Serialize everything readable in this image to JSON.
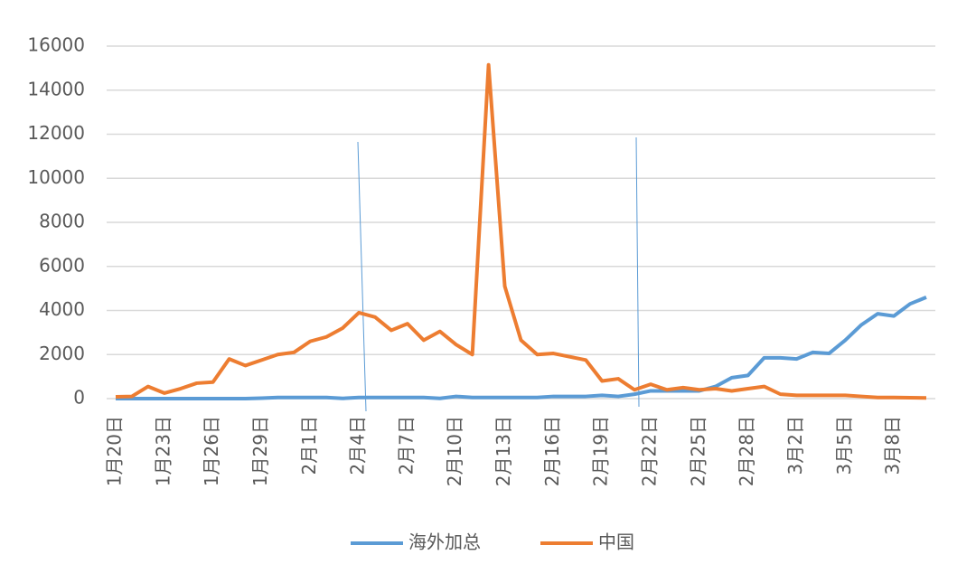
{
  "chart_data": {
    "type": "line",
    "categories": [
      "1月20日",
      null,
      null,
      "1月23日",
      null,
      null,
      "1月26日",
      null,
      null,
      "1月29日",
      null,
      null,
      "2月1日",
      null,
      null,
      "2月4日",
      null,
      null,
      "2月7日",
      null,
      null,
      "2月10日",
      null,
      null,
      "2月13日",
      null,
      null,
      "2月16日",
      null,
      null,
      "2月19日",
      null,
      null,
      "2月22日",
      null,
      null,
      "2月25日",
      null,
      null,
      "2月28日",
      null,
      null,
      "3月2日",
      null,
      null,
      "3月5日",
      null,
      null,
      "3月8日",
      null,
      null
    ],
    "series": [
      {
        "name": "海外加总",
        "color": "#5b9bd5",
        "values": [
          0,
          0,
          0,
          0,
          0,
          0,
          0,
          0,
          0,
          20,
          50,
          50,
          50,
          50,
          10,
          50,
          50,
          50,
          50,
          50,
          10,
          100,
          50,
          50,
          50,
          50,
          50,
          100,
          100,
          100,
          150,
          100,
          200,
          350,
          350,
          350,
          350,
          550,
          950,
          1050,
          1850,
          1850,
          1800,
          2100,
          2050,
          2650,
          3350,
          3850,
          3750,
          4300,
          4600
        ]
      },
      {
        "name": "中国",
        "color": "#ed7d31",
        "values": [
          80,
          100,
          550,
          250,
          450,
          700,
          750,
          1800,
          1500,
          1750,
          2000,
          2100,
          2600,
          2800,
          3200,
          3900,
          3700,
          3100,
          3400,
          2650,
          3050,
          2450,
          2000,
          15150,
          5100,
          2650,
          2000,
          2050,
          1900,
          1750,
          800,
          900,
          400,
          650,
          400,
          500,
          400,
          450,
          350,
          450,
          550,
          200,
          150,
          150,
          150,
          150,
          100,
          50,
          50,
          40,
          30
        ]
      }
    ],
    "ylim": [
      0,
      16000
    ],
    "yticks": [
      0,
      2000,
      4000,
      6000,
      8000,
      10000,
      12000,
      14000,
      16000
    ],
    "grid": true,
    "legend": "bottom"
  }
}
